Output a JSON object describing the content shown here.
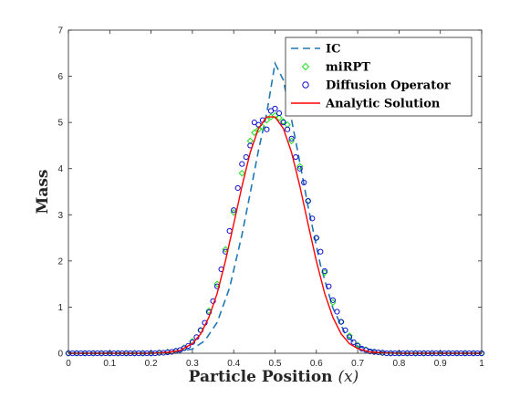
{
  "chart_data": {
    "type": "line",
    "title": "",
    "xlabel": "Particle Position",
    "xlabel_var": "(x)",
    "ylabel": "Mass",
    "xlim": [
      0,
      1
    ],
    "ylim": [
      0,
      7
    ],
    "xticks": [
      "0",
      "0.1",
      "0.2",
      "0.3",
      "0.4",
      "0.5",
      "0.6",
      "0.7",
      "0.8",
      "0.9",
      "1"
    ],
    "yticks": [
      "0",
      "1",
      "2",
      "3",
      "4",
      "5",
      "6",
      "7"
    ],
    "grid": false,
    "legend_position": "top-right",
    "series": [
      {
        "name": "IC",
        "kind": "dashed-line",
        "color": "#1f77b4",
        "x": [
          0.0,
          0.2,
          0.25,
          0.3,
          0.33,
          0.36,
          0.39,
          0.42,
          0.44,
          0.46,
          0.48,
          0.5,
          0.52,
          0.54,
          0.56,
          0.58,
          0.61,
          0.64,
          0.67,
          0.7,
          0.75,
          0.8,
          1.0
        ],
        "y": [
          0.0,
          0.0,
          0.02,
          0.09,
          0.27,
          0.67,
          1.42,
          2.57,
          3.47,
          4.4,
          5.2,
          6.28,
          5.92,
          5.06,
          4.13,
          3.18,
          1.91,
          0.98,
          0.42,
          0.15,
          0.03,
          0.0,
          0.0
        ]
      },
      {
        "name": "miRPT",
        "kind": "markers-diamond",
        "color": "#22dd22",
        "x": [
          0.0,
          0.02,
          0.04,
          0.06,
          0.08,
          0.1,
          0.12,
          0.14,
          0.16,
          0.18,
          0.2,
          0.22,
          0.24,
          0.26,
          0.28,
          0.3,
          0.32,
          0.34,
          0.36,
          0.38,
          0.4,
          0.42,
          0.44,
          0.45,
          0.46,
          0.47,
          0.48,
          0.49,
          0.5,
          0.51,
          0.52,
          0.53,
          0.54,
          0.56,
          0.58,
          0.6,
          0.62,
          0.64,
          0.66,
          0.68,
          0.7,
          0.72,
          0.74,
          0.76,
          0.78,
          0.8,
          0.82,
          0.84,
          0.86,
          0.88,
          0.9,
          0.92,
          0.94,
          0.96,
          0.98,
          1.0
        ],
        "y": [
          0.0,
          0.0,
          0.0,
          0.0,
          0.0,
          0.0,
          0.0,
          0.0,
          0.0,
          0.0,
          0.0,
          0.01,
          0.03,
          0.05,
          0.12,
          0.26,
          0.5,
          0.92,
          1.5,
          2.25,
          3.05,
          3.9,
          4.6,
          4.78,
          4.85,
          4.9,
          5.05,
          5.12,
          5.15,
          5.1,
          5.02,
          4.95,
          4.6,
          4.05,
          3.3,
          2.5,
          1.75,
          1.1,
          0.68,
          0.38,
          0.18,
          0.08,
          0.03,
          0.01,
          0.0,
          0.0,
          0.0,
          0.0,
          0.0,
          0.0,
          0.0,
          0.0,
          0.0,
          0.0,
          0.0,
          0.0
        ]
      },
      {
        "name": "Diffusion Operator",
        "kind": "markers-circle",
        "color": "#1010cc",
        "x": [
          0.0,
          0.01,
          0.02,
          0.03,
          0.04,
          0.05,
          0.06,
          0.07,
          0.08,
          0.09,
          0.1,
          0.11,
          0.12,
          0.13,
          0.14,
          0.15,
          0.16,
          0.17,
          0.18,
          0.19,
          0.2,
          0.21,
          0.22,
          0.23,
          0.24,
          0.25,
          0.26,
          0.27,
          0.28,
          0.29,
          0.3,
          0.31,
          0.32,
          0.33,
          0.34,
          0.35,
          0.36,
          0.37,
          0.38,
          0.39,
          0.4,
          0.41,
          0.42,
          0.43,
          0.44,
          0.45,
          0.46,
          0.47,
          0.48,
          0.49,
          0.5,
          0.51,
          0.52,
          0.53,
          0.54,
          0.55,
          0.56,
          0.57,
          0.58,
          0.59,
          0.6,
          0.61,
          0.62,
          0.63,
          0.64,
          0.65,
          0.66,
          0.67,
          0.68,
          0.69,
          0.7,
          0.71,
          0.72,
          0.73,
          0.74,
          0.75,
          0.76,
          0.77,
          0.78,
          0.79,
          0.8,
          0.81,
          0.82,
          0.83,
          0.84,
          0.85,
          0.86,
          0.87,
          0.88,
          0.89,
          0.9,
          0.91,
          0.92,
          0.93,
          0.94,
          0.95,
          0.96,
          0.97,
          0.98,
          0.99,
          1.0
        ],
        "y": [
          0.0,
          0.0,
          0.0,
          0.0,
          0.0,
          0.0,
          0.0,
          0.0,
          0.0,
          0.0,
          0.0,
          0.0,
          0.0,
          0.0,
          0.0,
          0.0,
          0.0,
          0.0,
          0.0,
          0.0,
          0.0,
          0.0,
          0.01,
          0.01,
          0.02,
          0.03,
          0.05,
          0.07,
          0.11,
          0.16,
          0.24,
          0.35,
          0.5,
          0.66,
          0.89,
          1.13,
          1.45,
          1.82,
          2.2,
          2.65,
          3.1,
          3.58,
          4.1,
          4.25,
          4.5,
          5.0,
          4.95,
          5.05,
          4.85,
          5.25,
          5.3,
          5.2,
          5.0,
          4.85,
          4.65,
          4.25,
          4.0,
          3.7,
          3.3,
          2.92,
          2.5,
          2.2,
          1.78,
          1.45,
          1.15,
          0.9,
          0.68,
          0.5,
          0.35,
          0.24,
          0.16,
          0.1,
          0.07,
          0.04,
          0.03,
          0.02,
          0.01,
          0.0,
          0.0,
          0.0,
          0.0,
          0.0,
          0.0,
          0.0,
          0.0,
          0.0,
          0.0,
          0.0,
          0.0,
          0.0,
          0.0,
          0.0,
          0.0,
          0.0,
          0.0,
          0.0,
          0.0,
          0.0,
          0.0,
          0.0,
          0.0
        ]
      },
      {
        "name": "Analytic Solution",
        "kind": "solid-line",
        "color": "#ff0000",
        "x": [
          0.0,
          0.2,
          0.24,
          0.27,
          0.3,
          0.32,
          0.34,
          0.36,
          0.38,
          0.4,
          0.42,
          0.44,
          0.46,
          0.48,
          0.5,
          0.52,
          0.54,
          0.56,
          0.58,
          0.6,
          0.62,
          0.64,
          0.66,
          0.68,
          0.7,
          0.73,
          0.76,
          0.8,
          1.0
        ],
        "y": [
          0.0,
          0.0,
          0.02,
          0.06,
          0.21,
          0.42,
          0.78,
          1.3,
          2.0,
          2.8,
          3.62,
          4.35,
          4.87,
          5.12,
          5.12,
          4.87,
          4.35,
          3.62,
          2.8,
          2.0,
          1.3,
          0.78,
          0.42,
          0.21,
          0.1,
          0.03,
          0.01,
          0.0,
          0.0
        ]
      }
    ]
  }
}
